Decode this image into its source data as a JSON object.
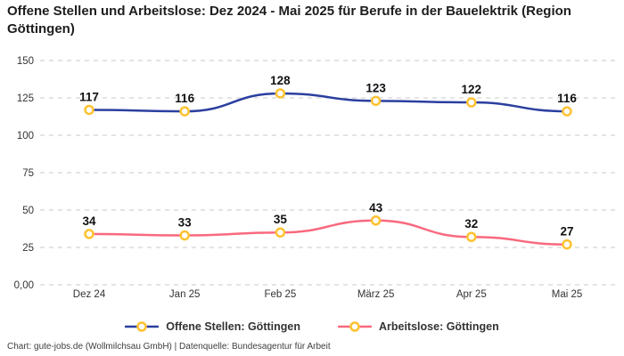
{
  "header": {
    "title": "Offene Stellen und Arbeitslose: Dez 2024 - Mai 2025 für Berufe in der Bauelektrik (Region Göttingen)"
  },
  "chart_data": {
    "type": "line",
    "title": "Offene Stellen und Arbeitslose: Dez 2024 - Mai 2025 für Berufe in der Bauelektrik (Region Göttingen)",
    "categories": [
      "Dez 24",
      "Jan 25",
      "Feb 25",
      "März 25",
      "Apr 25",
      "Mai 25"
    ],
    "series": [
      {
        "name": "Offene Stellen: Göttingen",
        "values": [
          117,
          116,
          128,
          123,
          122,
          116
        ],
        "color": "#2b3f9f"
      },
      {
        "name": "Arbeitslose: Göttingen",
        "values": [
          34,
          33,
          35,
          43,
          32,
          27
        ],
        "color": "#f9697f"
      }
    ],
    "y_ticks": [
      150,
      125,
      100,
      75,
      50,
      25,
      0
    ],
    "y_tick_labels": [
      "150",
      "125",
      "100",
      "75",
      "50",
      "25",
      "0,00"
    ],
    "ylim": [
      0,
      150
    ],
    "xlabel": "",
    "ylabel": "",
    "grid": "horizontal-dashed",
    "legend_position": "bottom-center",
    "data_labels": true,
    "marker": {
      "fill": "#ffffff",
      "stroke": "#fdc231"
    }
  },
  "footer": {
    "credit": "Chart: gute-jobs.de (Wollmilchsau GmbH) | Datenquelle: Bundesagentur für Arbeit"
  }
}
